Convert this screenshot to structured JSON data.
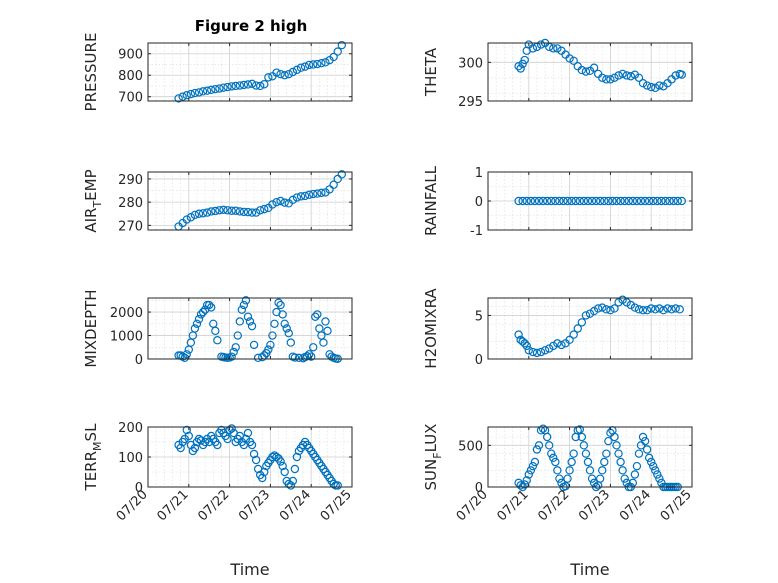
{
  "figure": {
    "title": "Figure 2 high",
    "marker_color": "#0072BD",
    "grid": true
  },
  "chart_data": [
    {
      "type": "scatter",
      "title": "Figure 2 high",
      "ylabel": "PRESSURE",
      "xlabel": "",
      "xlim": [
        0,
        5
      ],
      "ylim": [
        680,
        950
      ],
      "yticks": [
        "700",
        "800",
        "900"
      ],
      "xticklabels": [],
      "x": [
        0.75,
        0.85,
        0.95,
        1.05,
        1.15,
        1.25,
        1.35,
        1.45,
        1.55,
        1.65,
        1.75,
        1.85,
        1.95,
        2.05,
        2.15,
        2.25,
        2.35,
        2.45,
        2.55,
        2.65,
        2.75,
        2.85,
        2.95,
        3.05,
        3.15,
        3.25,
        3.35,
        3.45,
        3.55,
        3.65,
        3.75,
        3.85,
        3.95,
        4.05,
        4.15,
        4.25,
        4.35,
        4.45,
        4.55,
        4.65,
        4.75
      ],
      "y": [
        692,
        700,
        707,
        712,
        717,
        720,
        725,
        728,
        732,
        735,
        738,
        742,
        745,
        748,
        750,
        752,
        755,
        757,
        760,
        752,
        750,
        758,
        790,
        795,
        812,
        805,
        800,
        805,
        815,
        825,
        835,
        840,
        848,
        850,
        852,
        856,
        860,
        870,
        885,
        910,
        940
      ]
    },
    {
      "type": "scatter",
      "title": "",
      "ylabel": "THETA",
      "xlabel": "",
      "xlim": [
        0,
        5
      ],
      "ylim": [
        295,
        302.5
      ],
      "yticks": [
        "295",
        "300"
      ],
      "xticklabels": [],
      "x": [
        0.75,
        0.8,
        0.85,
        0.9,
        0.95,
        1.0,
        1.1,
        1.2,
        1.3,
        1.4,
        1.5,
        1.6,
        1.7,
        1.8,
        1.9,
        2.0,
        2.1,
        2.2,
        2.3,
        2.4,
        2.5,
        2.6,
        2.7,
        2.8,
        2.9,
        3.0,
        3.1,
        3.2,
        3.3,
        3.4,
        3.5,
        3.6,
        3.7,
        3.8,
        3.9,
        4.0,
        4.1,
        4.2,
        4.3,
        4.4,
        4.5,
        4.6,
        4.7,
        4.75
      ],
      "y": [
        299.5,
        299.2,
        299.8,
        300.3,
        301.5,
        302.3,
        301.8,
        302.0,
        302.3,
        302.5,
        302.0,
        301.8,
        301.8,
        301.5,
        301.0,
        300.5,
        300.2,
        299.5,
        299.0,
        298.8,
        298.9,
        299.3,
        298.5,
        298.0,
        297.8,
        297.8,
        298.0,
        298.3,
        298.5,
        298.3,
        298.2,
        298.4,
        298.0,
        297.3,
        297.0,
        296.8,
        296.7,
        297.0,
        296.9,
        297.3,
        297.8,
        298.3,
        298.5,
        298.4
      ]
    },
    {
      "type": "scatter",
      "title": "",
      "ylabel": "AIR_TEMP",
      "xlabel": "",
      "xlim": [
        0,
        5
      ],
      "ylim": [
        268,
        293
      ],
      "yticks": [
        "270",
        "280",
        "290"
      ],
      "xticklabels": [],
      "x": [
        0.75,
        0.85,
        0.95,
        1.05,
        1.15,
        1.25,
        1.35,
        1.45,
        1.55,
        1.65,
        1.75,
        1.85,
        1.95,
        2.05,
        2.15,
        2.25,
        2.35,
        2.45,
        2.55,
        2.65,
        2.75,
        2.85,
        2.95,
        3.05,
        3.15,
        3.25,
        3.35,
        3.45,
        3.55,
        3.65,
        3.75,
        3.85,
        3.95,
        4.05,
        4.15,
        4.25,
        4.35,
        4.45,
        4.55,
        4.65,
        4.75
      ],
      "y": [
        269.5,
        271,
        272.5,
        273.5,
        274.5,
        275,
        275.2,
        275.5,
        276,
        276.2,
        276.5,
        276.7,
        276.5,
        276.3,
        276.3,
        276,
        275.8,
        275.7,
        275.5,
        275.5,
        276.5,
        277,
        277.5,
        279,
        280,
        280.5,
        279.8,
        279.5,
        281,
        282,
        282.5,
        282.7,
        283.2,
        283.5,
        283.7,
        284,
        284.2,
        285.5,
        287.5,
        290,
        292
      ]
    },
    {
      "type": "scatter",
      "title": "",
      "ylabel": "RAINFALL",
      "xlabel": "",
      "xlim": [
        0,
        5
      ],
      "ylim": [
        -1,
        1
      ],
      "yticks": [
        "-1",
        "0",
        "1"
      ],
      "xticklabels": [],
      "x": [
        0.75,
        0.85,
        0.95,
        1.05,
        1.15,
        1.25,
        1.35,
        1.45,
        1.55,
        1.65,
        1.75,
        1.85,
        1.95,
        2.05,
        2.15,
        2.25,
        2.35,
        2.45,
        2.55,
        2.65,
        2.75,
        2.85,
        2.95,
        3.05,
        3.15,
        3.25,
        3.35,
        3.45,
        3.55,
        3.65,
        3.75,
        3.85,
        3.95,
        4.05,
        4.15,
        4.25,
        4.35,
        4.45,
        4.55,
        4.65,
        4.75
      ],
      "y": [
        0,
        0,
        0,
        0,
        0,
        0,
        0,
        0,
        0,
        0,
        0,
        0,
        0,
        0,
        0,
        0,
        0,
        0,
        0,
        0,
        0,
        0,
        0,
        0,
        0,
        0,
        0,
        0,
        0,
        0,
        0,
        0,
        0,
        0,
        0,
        0,
        0,
        0,
        0,
        0,
        0
      ]
    },
    {
      "type": "scatter",
      "title": "",
      "ylabel": "MIXDEPTH",
      "xlabel": "",
      "xlim": [
        0,
        5
      ],
      "ylim": [
        0,
        2600
      ],
      "yticks": [
        "0",
        "1000",
        "2000"
      ],
      "xticklabels": [],
      "x": [
        0.75,
        0.8,
        0.85,
        0.9,
        0.95,
        1.0,
        1.05,
        1.1,
        1.15,
        1.2,
        1.25,
        1.3,
        1.35,
        1.4,
        1.45,
        1.5,
        1.55,
        1.6,
        1.65,
        1.7,
        1.8,
        1.85,
        1.9,
        1.95,
        2.0,
        2.05,
        2.1,
        2.15,
        2.2,
        2.25,
        2.3,
        2.35,
        2.4,
        2.45,
        2.5,
        2.55,
        2.6,
        2.7,
        2.8,
        2.85,
        2.9,
        2.95,
        3.0,
        3.05,
        3.1,
        3.15,
        3.2,
        3.25,
        3.3,
        3.35,
        3.4,
        3.45,
        3.5,
        3.55,
        3.6,
        3.7,
        3.8,
        3.85,
        3.9,
        3.95,
        4.0,
        4.05,
        4.1,
        4.15,
        4.2,
        4.25,
        4.3,
        4.35,
        4.4,
        4.45,
        4.5,
        4.55,
        4.6,
        4.65
      ],
      "y": [
        150,
        150,
        100,
        50,
        200,
        400,
        700,
        1000,
        1300,
        1500,
        1700,
        1900,
        2000,
        2100,
        2300,
        2300,
        2200,
        1500,
        1200,
        800,
        100,
        80,
        60,
        50,
        60,
        100,
        300,
        500,
        1000,
        1600,
        2100,
        2300,
        2500,
        1800,
        1600,
        1400,
        600,
        50,
        80,
        150,
        250,
        400,
        600,
        1000,
        1500,
        2000,
        2400,
        2300,
        1900,
        1500,
        1300,
        1100,
        700,
        100,
        60,
        50,
        30,
        80,
        120,
        200,
        100,
        500,
        1800,
        1900,
        1300,
        1000,
        700,
        1600,
        1200,
        200,
        100,
        50,
        20,
        10
      ]
    },
    {
      "type": "scatter",
      "title": "",
      "ylabel": "H2OMIXRA",
      "xlabel": "",
      "xlim": [
        0,
        5
      ],
      "ylim": [
        0,
        7
      ],
      "yticks": [
        "0",
        "5"
      ],
      "xticklabels": [],
      "x": [
        0.75,
        0.8,
        0.85,
        0.9,
        0.95,
        1.0,
        1.1,
        1.2,
        1.3,
        1.4,
        1.5,
        1.6,
        1.7,
        1.8,
        1.9,
        2.0,
        2.1,
        2.2,
        2.3,
        2.4,
        2.5,
        2.6,
        2.7,
        2.8,
        2.9,
        3.0,
        3.1,
        3.2,
        3.3,
        3.4,
        3.5,
        3.6,
        3.7,
        3.8,
        3.9,
        4.0,
        4.1,
        4.2,
        4.3,
        4.4,
        4.5,
        4.6,
        4.7
      ],
      "y": [
        2.8,
        2.2,
        2.0,
        1.8,
        1.5,
        1.0,
        0.8,
        0.7,
        0.8,
        1.0,
        1.2,
        1.5,
        1.8,
        1.6,
        1.8,
        2.2,
        2.8,
        3.5,
        4.2,
        5.0,
        5.2,
        5.5,
        5.8,
        5.9,
        5.7,
        5.6,
        5.8,
        6.5,
        6.8,
        6.5,
        6.2,
        5.9,
        5.7,
        5.6,
        5.6,
        5.8,
        5.7,
        5.8,
        5.6,
        5.8,
        5.7,
        5.8,
        5.7
      ]
    },
    {
      "type": "scatter",
      "title": "",
      "ylabel": "TERR_MSL",
      "xlabel": "Time",
      "xlim": [
        0,
        5
      ],
      "ylim": [
        0,
        200
      ],
      "yticks": [
        "0",
        "100",
        "200"
      ],
      "xticklabels": [
        "07/20",
        "07/21",
        "07/22",
        "07/23",
        "07/24",
        "07/25"
      ],
      "x": [
        0.75,
        0.8,
        0.85,
        0.9,
        0.95,
        1.0,
        1.05,
        1.1,
        1.15,
        1.2,
        1.25,
        1.3,
        1.35,
        1.4,
        1.45,
        1.5,
        1.55,
        1.6,
        1.65,
        1.7,
        1.75,
        1.8,
        1.85,
        1.9,
        1.95,
        2.0,
        2.05,
        2.1,
        2.15,
        2.2,
        2.25,
        2.3,
        2.35,
        2.4,
        2.45,
        2.5,
        2.55,
        2.6,
        2.65,
        2.7,
        2.75,
        2.8,
        2.85,
        2.9,
        2.95,
        3.0,
        3.05,
        3.1,
        3.15,
        3.2,
        3.25,
        3.3,
        3.35,
        3.4,
        3.45,
        3.5,
        3.55,
        3.6,
        3.65,
        3.7,
        3.75,
        3.8,
        3.85,
        3.9,
        3.95,
        4.0,
        4.05,
        4.1,
        4.15,
        4.2,
        4.25,
        4.3,
        4.35,
        4.4,
        4.45,
        4.5,
        4.55,
        4.6,
        4.65
      ],
      "y": [
        140,
        130,
        150,
        160,
        190,
        170,
        140,
        120,
        130,
        150,
        160,
        155,
        140,
        150,
        160,
        150,
        170,
        160,
        150,
        140,
        180,
        190,
        180,
        170,
        160,
        190,
        195,
        180,
        150,
        160,
        170,
        150,
        140,
        160,
        180,
        150,
        140,
        110,
        90,
        60,
        40,
        30,
        50,
        70,
        80,
        90,
        100,
        105,
        100,
        95,
        85,
        70,
        50,
        20,
        10,
        5,
        20,
        60,
        100,
        120,
        130,
        140,
        150,
        140,
        130,
        120,
        110,
        100,
        90,
        80,
        70,
        60,
        50,
        40,
        30,
        20,
        10,
        5,
        5
      ]
    },
    {
      "type": "scatter",
      "title": "",
      "ylabel": "SUN_FLUX",
      "xlabel": "Time",
      "xlim": [
        0,
        5
      ],
      "ylim": [
        0,
        720
      ],
      "yticks": [
        "0",
        "500"
      ],
      "xticklabels": [
        "07/20",
        "07/21",
        "07/22",
        "07/23",
        "07/24",
        "07/25"
      ],
      "x": [
        0.75,
        0.8,
        0.85,
        0.9,
        0.95,
        1.0,
        1.05,
        1.1,
        1.15,
        1.2,
        1.25,
        1.3,
        1.35,
        1.4,
        1.45,
        1.5,
        1.55,
        1.6,
        1.65,
        1.7,
        1.75,
        1.8,
        1.85,
        1.9,
        1.95,
        2.0,
        2.05,
        2.1,
        2.15,
        2.2,
        2.25,
        2.3,
        2.35,
        2.4,
        2.45,
        2.5,
        2.55,
        2.6,
        2.65,
        2.7,
        2.75,
        2.8,
        2.85,
        2.9,
        2.95,
        3.0,
        3.05,
        3.1,
        3.15,
        3.2,
        3.25,
        3.3,
        3.35,
        3.4,
        3.45,
        3.5,
        3.55,
        3.6,
        3.65,
        3.7,
        3.75,
        3.8,
        3.85,
        3.9,
        3.95,
        4.0,
        4.05,
        4.1,
        4.15,
        4.2,
        4.25,
        4.3,
        4.35,
        4.4,
        4.45,
        4.5,
        4.55,
        4.6,
        4.65
      ],
      "y": [
        50,
        20,
        0,
        30,
        80,
        150,
        200,
        250,
        300,
        450,
        500,
        680,
        700,
        680,
        600,
        500,
        400,
        350,
        300,
        200,
        100,
        50,
        0,
        10,
        100,
        200,
        300,
        400,
        600,
        680,
        690,
        600,
        500,
        400,
        300,
        200,
        100,
        50,
        0,
        20,
        100,
        200,
        300,
        400,
        550,
        650,
        680,
        600,
        500,
        400,
        300,
        200,
        100,
        50,
        0,
        0,
        50,
        150,
        250,
        400,
        500,
        600,
        550,
        450,
        350,
        300,
        250,
        200,
        150,
        100,
        50,
        0,
        0,
        0,
        0,
        0,
        0,
        0,
        0
      ]
    }
  ]
}
